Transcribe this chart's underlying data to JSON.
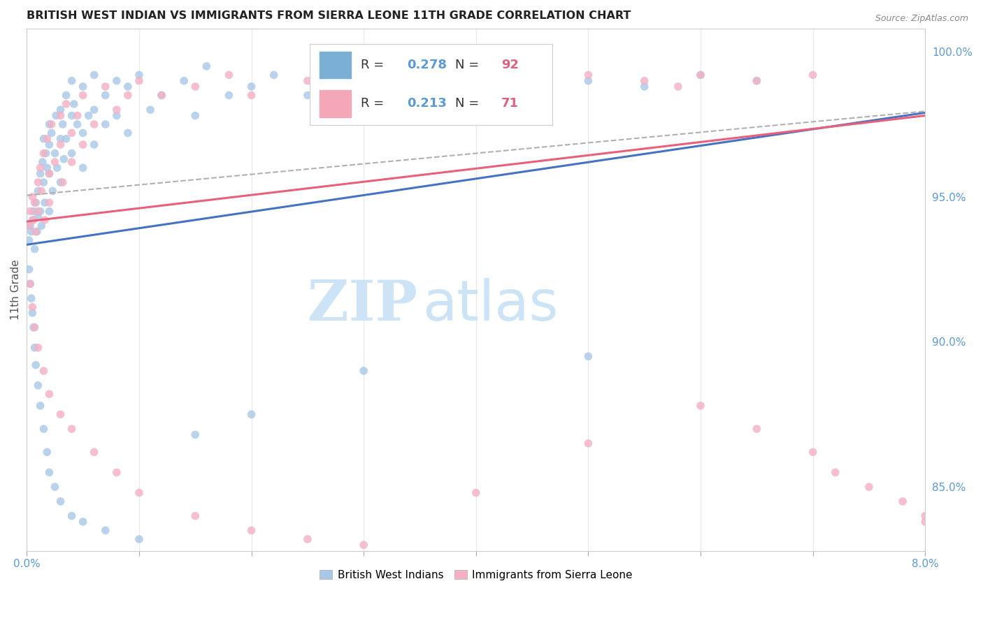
{
  "title": "BRITISH WEST INDIAN VS IMMIGRANTS FROM SIERRA LEONE 11TH GRADE CORRELATION CHART",
  "source": "Source: ZipAtlas.com",
  "ylabel": "11th Grade",
  "ylabel_right_ticks": [
    "85.0%",
    "90.0%",
    "95.0%",
    "100.0%"
  ],
  "ylabel_right_vals": [
    0.85,
    0.9,
    0.95,
    1.0
  ],
  "legend_box": {
    "R1": "0.278",
    "N1": "92",
    "R2": "0.213",
    "N2": "71",
    "color1": "#7bafd4",
    "color2": "#f4a7b9"
  },
  "blue_scatter": {
    "x": [
      0.0002,
      0.0003,
      0.0004,
      0.0005,
      0.0006,
      0.0007,
      0.0008,
      0.0009,
      0.001,
      0.001,
      0.0012,
      0.0012,
      0.0013,
      0.0014,
      0.0015,
      0.0015,
      0.0016,
      0.0017,
      0.0018,
      0.002,
      0.002,
      0.002,
      0.002,
      0.0022,
      0.0023,
      0.0025,
      0.0026,
      0.0027,
      0.003,
      0.003,
      0.003,
      0.0032,
      0.0033,
      0.0035,
      0.0035,
      0.004,
      0.004,
      0.004,
      0.0042,
      0.0045,
      0.005,
      0.005,
      0.005,
      0.0055,
      0.006,
      0.006,
      0.006,
      0.007,
      0.007,
      0.008,
      0.008,
      0.009,
      0.009,
      0.01,
      0.011,
      0.012,
      0.014,
      0.015,
      0.016,
      0.018,
      0.02,
      0.022,
      0.025,
      0.03,
      0.035,
      0.04,
      0.05,
      0.055,
      0.06,
      0.065,
      0.0002,
      0.0003,
      0.0004,
      0.0005,
      0.0006,
      0.0007,
      0.0008,
      0.001,
      0.0012,
      0.0015,
      0.0018,
      0.002,
      0.0025,
      0.003,
      0.004,
      0.005,
      0.007,
      0.01,
      0.015,
      0.02,
      0.03,
      0.05
    ],
    "y": [
      0.935,
      0.94,
      0.938,
      0.942,
      0.945,
      0.932,
      0.948,
      0.938,
      0.952,
      0.943,
      0.958,
      0.945,
      0.94,
      0.962,
      0.97,
      0.955,
      0.948,
      0.965,
      0.96,
      0.975,
      0.958,
      0.968,
      0.945,
      0.972,
      0.952,
      0.965,
      0.978,
      0.96,
      0.98,
      0.97,
      0.955,
      0.975,
      0.963,
      0.985,
      0.97,
      0.978,
      0.99,
      0.965,
      0.982,
      0.975,
      0.988,
      0.972,
      0.96,
      0.978,
      0.992,
      0.98,
      0.968,
      0.985,
      0.975,
      0.99,
      0.978,
      0.988,
      0.972,
      0.992,
      0.98,
      0.985,
      0.99,
      0.978,
      0.995,
      0.985,
      0.988,
      0.992,
      0.985,
      0.99,
      0.988,
      0.992,
      0.99,
      0.988,
      0.992,
      0.99,
      0.925,
      0.92,
      0.915,
      0.91,
      0.905,
      0.898,
      0.892,
      0.885,
      0.878,
      0.87,
      0.862,
      0.855,
      0.85,
      0.845,
      0.84,
      0.838,
      0.835,
      0.832,
      0.868,
      0.875,
      0.89,
      0.895
    ],
    "color": "#a8c8e8",
    "alpha": 0.8,
    "size": 70
  },
  "pink_scatter": {
    "x": [
      0.0002,
      0.0003,
      0.0005,
      0.0006,
      0.0007,
      0.0008,
      0.001,
      0.001,
      0.0012,
      0.0013,
      0.0015,
      0.0016,
      0.0018,
      0.002,
      0.002,
      0.0022,
      0.0025,
      0.003,
      0.003,
      0.0032,
      0.0035,
      0.004,
      0.004,
      0.0045,
      0.005,
      0.005,
      0.006,
      0.007,
      0.008,
      0.009,
      0.01,
      0.012,
      0.015,
      0.018,
      0.02,
      0.025,
      0.03,
      0.035,
      0.04,
      0.045,
      0.05,
      0.055,
      0.058,
      0.06,
      0.065,
      0.07,
      0.0003,
      0.0005,
      0.0007,
      0.001,
      0.0015,
      0.002,
      0.003,
      0.004,
      0.006,
      0.008,
      0.01,
      0.015,
      0.02,
      0.025,
      0.03,
      0.04,
      0.05,
      0.06,
      0.065,
      0.07,
      0.072,
      0.075,
      0.078,
      0.08,
      0.08
    ],
    "y": [
      0.94,
      0.945,
      0.95,
      0.942,
      0.948,
      0.938,
      0.955,
      0.945,
      0.96,
      0.952,
      0.965,
      0.942,
      0.97,
      0.958,
      0.948,
      0.975,
      0.962,
      0.978,
      0.968,
      0.955,
      0.982,
      0.972,
      0.962,
      0.978,
      0.985,
      0.968,
      0.975,
      0.988,
      0.98,
      0.985,
      0.99,
      0.985,
      0.988,
      0.992,
      0.985,
      0.99,
      0.988,
      0.992,
      0.99,
      0.988,
      0.992,
      0.99,
      0.988,
      0.992,
      0.99,
      0.992,
      0.92,
      0.912,
      0.905,
      0.898,
      0.89,
      0.882,
      0.875,
      0.87,
      0.862,
      0.855,
      0.848,
      0.84,
      0.835,
      0.832,
      0.83,
      0.848,
      0.865,
      0.878,
      0.87,
      0.862,
      0.855,
      0.85,
      0.845,
      0.84,
      0.838
    ],
    "color": "#f4b0c4",
    "alpha": 0.8,
    "size": 70
  },
  "blue_line": {
    "x0": 0.0,
    "y0": 0.9335,
    "x1": 0.08,
    "y1": 0.979,
    "color": "#4472c4",
    "linewidth": 2.2
  },
  "pink_line": {
    "x0": 0.0,
    "y0": 0.9415,
    "x1": 0.08,
    "y1": 0.978,
    "color": "#e8607a",
    "linewidth": 2.2
  },
  "dashed_line": {
    "x0": 0.0,
    "y0": 0.9505,
    "x1": 0.08,
    "y1": 0.9795,
    "color": "#b0b0b0",
    "linewidth": 1.5,
    "linestyle": "--"
  },
  "xlim": [
    0.0,
    0.08
  ],
  "ylim": [
    0.828,
    1.008
  ],
  "watermark_zip": "ZIP",
  "watermark_atlas": "atlas",
  "watermark_color": "#cce4f5",
  "background_color": "#ffffff",
  "grid_color": "#e8e8e8"
}
